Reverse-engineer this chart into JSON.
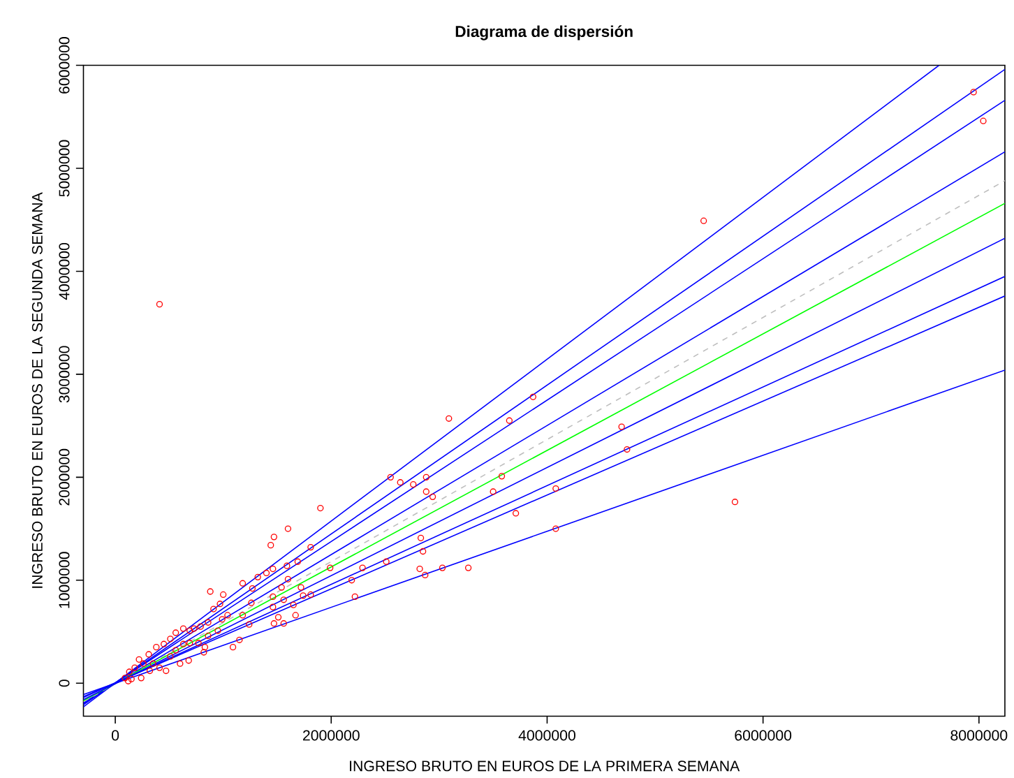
{
  "chart_data": {
    "type": "scatter",
    "title": "Diagrama de dispersión",
    "xlabel": "INGRESO BRUTO EN EUROS DE LA PRIMERA SEMANA",
    "ylabel": "INGRESO BRUTO EN EUROS DE LA SEGUNDA SEMANA",
    "xlim": [
      -295000,
      8240000
    ],
    "ylim": [
      -320000,
      6000000
    ],
    "xticks": [
      0,
      2000000,
      4000000,
      6000000,
      8000000
    ],
    "yticks": [
      0,
      1000000,
      2000000,
      3000000,
      4000000,
      5000000,
      6000000
    ],
    "series": [
      {
        "color": "#ff0000",
        "marker": "circle",
        "x": [
          5450000,
          3090000,
          3870000,
          3650000,
          2880000,
          2880000,
          2940000,
          3580000,
          3500000,
          4690000,
          4740000,
          4080000,
          3710000,
          5740000,
          4080000,
          2830000,
          2850000,
          3030000,
          3270000,
          7950000,
          8040000,
          2550000,
          2640000,
          2760000,
          1900000,
          1600000,
          1470000,
          1440000,
          1810000,
          1460000,
          1320000,
          1180000,
          880000,
          1000000,
          1590000,
          1690000,
          1400000,
          1270000,
          1540000,
          1600000,
          1720000,
          1810000,
          1740000,
          1460000,
          1560000,
          1650000,
          1460000,
          1670000,
          1510000,
          1470000,
          1560000,
          1990000,
          2190000,
          2220000,
          2290000,
          2510000,
          2820000,
          2870000,
          1180000,
          1240000,
          1150000,
          1090000,
          1260000,
          990000,
          1040000,
          910000,
          970000,
          860000,
          790000,
          730000,
          690000,
          630000,
          560000,
          510000,
          680000,
          630000,
          770000,
          830000,
          820000,
          470000,
          410000,
          350000,
          310000,
          380000,
          450000,
          220000,
          260000,
          180000,
          130000,
          90000,
          120000,
          150000,
          240000,
          320000,
          560000,
          690000,
          510000,
          600000,
          860000,
          950000,
          410000
        ],
        "values": [
          4490000,
          2570000,
          2780000,
          2550000,
          2000000,
          1860000,
          1810000,
          2010000,
          1860000,
          2490000,
          2270000,
          1890000,
          1650000,
          1760000,
          1500000,
          1410000,
          1280000,
          1120000,
          1120000,
          5740000,
          5460000,
          2000000,
          1950000,
          1930000,
          1700000,
          1500000,
          1420000,
          1340000,
          1320000,
          1110000,
          1030000,
          970000,
          890000,
          860000,
          1140000,
          1180000,
          1070000,
          920000,
          930000,
          1010000,
          930000,
          860000,
          850000,
          840000,
          810000,
          760000,
          740000,
          660000,
          640000,
          580000,
          580000,
          1120000,
          1000000,
          840000,
          1120000,
          1180000,
          1110000,
          1050000,
          660000,
          570000,
          420000,
          350000,
          780000,
          620000,
          660000,
          720000,
          770000,
          590000,
          550000,
          530000,
          510000,
          530000,
          490000,
          430000,
          220000,
          380000,
          390000,
          350000,
          300000,
          120000,
          150000,
          190000,
          280000,
          350000,
          380000,
          230000,
          190000,
          150000,
          110000,
          50000,
          20000,
          40000,
          50000,
          120000,
          320000,
          390000,
          260000,
          190000,
          460000,
          510000,
          3680000
        ]
      },
      {
        "type": "line",
        "color": "#0000ff",
        "marker": "none",
        "line_style": "solid",
        "x": [
          -295000,
          7630000
        ],
        "values": [
          -230000,
          6000000
        ]
      },
      {
        "type": "line",
        "color": "#0000ff",
        "marker": "none",
        "line_style": "solid",
        "x": [
          -295000,
          8240000
        ],
        "values": [
          -210000,
          5960000
        ]
      },
      {
        "type": "line",
        "color": "#0000ff",
        "marker": "none",
        "line_style": "solid",
        "x": [
          -295000,
          8240000
        ],
        "values": [
          -200000,
          5660000
        ]
      },
      {
        "type": "line",
        "color": "#0000ff",
        "marker": "none",
        "line_style": "solid",
        "x": [
          -295000,
          8240000
        ],
        "values": [
          -190000,
          5160000
        ]
      },
      {
        "type": "line",
        "color": "#bebebe",
        "marker": "none",
        "line_style": "dashed",
        "x": [
          -295000,
          8240000
        ],
        "values": [
          -180000,
          4880000
        ]
      },
      {
        "type": "line",
        "color": "#00ff00",
        "marker": "none",
        "line_style": "solid",
        "x": [
          -295000,
          8240000
        ],
        "values": [
          -170000,
          4660000
        ]
      },
      {
        "type": "line",
        "color": "#0000ff",
        "marker": "none",
        "line_style": "solid",
        "x": [
          -295000,
          8240000
        ],
        "values": [
          -160000,
          4320000
        ]
      },
      {
        "type": "line",
        "color": "#0000ff",
        "marker": "none",
        "line_style": "solid",
        "x": [
          -295000,
          8240000
        ],
        "values": [
          -140000,
          3950000
        ]
      },
      {
        "type": "line",
        "color": "#0000ff",
        "marker": "none",
        "line_style": "solid",
        "x": [
          -295000,
          8240000
        ],
        "values": [
          -130000,
          3760000
        ]
      },
      {
        "type": "line",
        "color": "#0000ff",
        "marker": "none",
        "line_style": "solid",
        "x": [
          -295000,
          8240000
        ],
        "values": [
          -110000,
          3040000
        ]
      }
    ]
  }
}
